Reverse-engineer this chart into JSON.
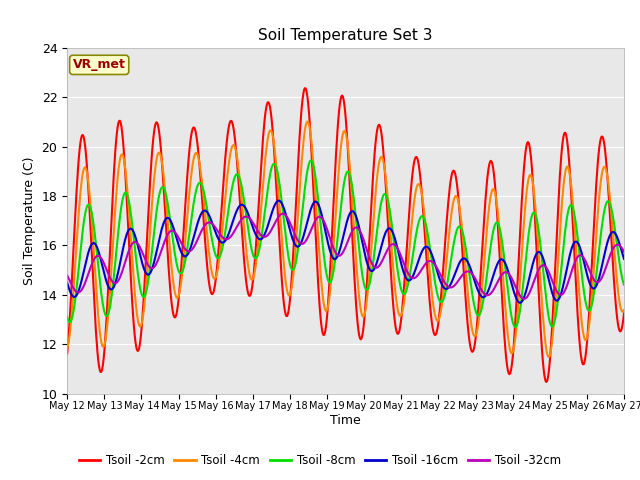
{
  "title": "Soil Temperature Set 3",
  "xlabel": "Time",
  "ylabel": "Soil Temperature (C)",
  "ylim": [
    10,
    24
  ],
  "yticks": [
    10,
    12,
    14,
    16,
    18,
    20,
    22,
    24
  ],
  "plot_bg_color": "#e8e8e8",
  "fig_bg_color": "#ffffff",
  "annotation_text": "VR_met",
  "annotation_bg": "#ffffcc",
  "annotation_border": "#888800",
  "annotation_text_color": "#990000",
  "series_colors": {
    "Tsoil -2cm": "#ff0000",
    "Tsoil -4cm": "#ff8800",
    "Tsoil -8cm": "#00dd00",
    "Tsoil -16cm": "#0000cc",
    "Tsoil -32cm": "#bb00bb"
  },
  "line_width": 1.5,
  "n_points": 720
}
